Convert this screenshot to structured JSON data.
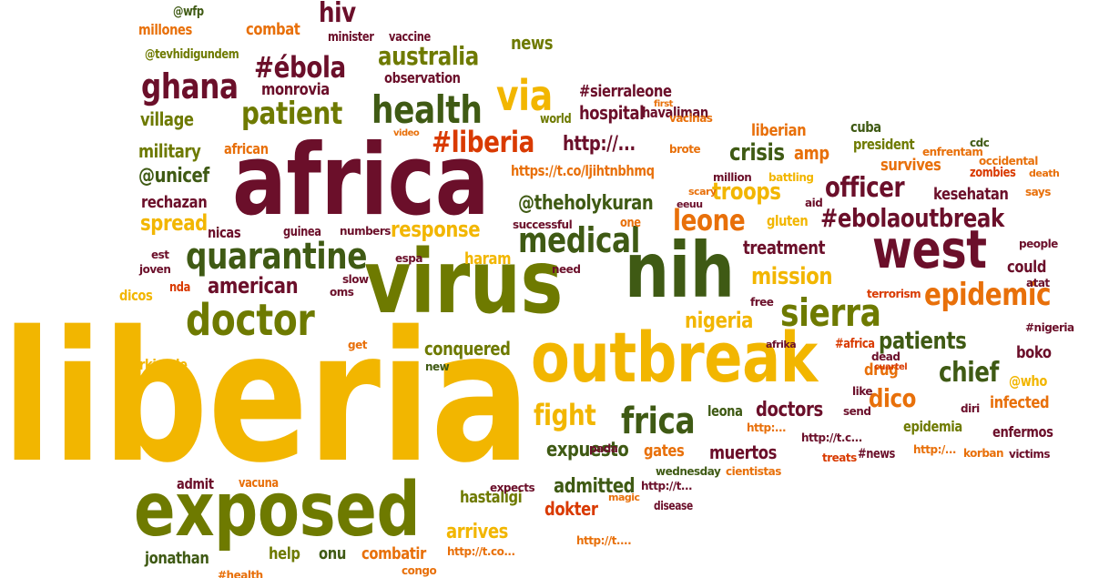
{
  "colors": {
    "yellow": "#f2b600",
    "orange": "#e8700a",
    "green": "#6e7a00",
    "darkgreen": "#3f5a14",
    "maroon": "#6b0f2a",
    "red": "#d93a00"
  },
  "words": [
    "liberia",
    "africa",
    "virus",
    "outbreak",
    "exposed",
    "nih",
    "west",
    "doctor",
    "health",
    "via",
    "quarantine",
    "sierra",
    "epidemic",
    "medical",
    "ghana",
    "patient",
    "#ébola",
    "#liberia",
    "frica",
    "officer",
    "leone",
    "australia",
    "fight",
    "hiv",
    "chief",
    "#ebolaoutbreak",
    "dico",
    "patients",
    "troops",
    "crisis",
    "american",
    "response",
    "mission",
    "nigeria",
    "spread",
    "treatment",
    "doctors",
    "expuesto",
    "admitted",
    "arrives",
    "monrovia",
    "@unicef",
    "@theholykuran",
    "village",
    "hospital",
    "amp",
    "military",
    "conquered",
    "news",
    "hastaligi",
    "muertos",
    "https://t.co/ljihtnbhmq",
    "http://...",
    "combat",
    "observation",
    "#sierraleone",
    "survives",
    "kesehatan",
    "gluten",
    "could",
    "boko",
    "epidemia",
    "enfermos",
    "infected",
    "drug",
    "dokter",
    "help",
    "onu",
    "combatir",
    "gates",
    "havaliman",
    "jonathan",
    "rechazan",
    "liberian",
    "cuba",
    "president",
    "millones",
    "minister",
    "vaccine",
    "@wfp",
    "@tevhidigundem",
    "world",
    "first",
    "vacinas",
    "african",
    "video",
    "brote",
    "enfrentam",
    "cdc",
    "occidental",
    "zombies",
    "death",
    "million",
    "battling",
    "scary",
    "eeuu",
    "aid",
    "says",
    "nicas",
    "guinea",
    "numbers",
    "successful",
    "one",
    "est",
    "joven",
    "espa",
    "haram",
    "need",
    "people",
    "dicos",
    "nda",
    "oms",
    "slow",
    "free",
    "atat",
    "terrorism",
    "#nigeria",
    "#africa",
    "afrika",
    "dead",
    "cuartel",
    "@who",
    "like",
    "send",
    "diri",
    "leona",
    "get",
    "rkiyede",
    "new",
    "expects",
    "http:...",
    "http://t.c...",
    "pada",
    "http:/...",
    "korban",
    "victims",
    "treats",
    "#news",
    "cientistas",
    "wednesday",
    "admit",
    "vacuna",
    "http://t...",
    "magic",
    "disease",
    "http://t....",
    "http://t.co...",
    "#health",
    "congo"
  ]
}
